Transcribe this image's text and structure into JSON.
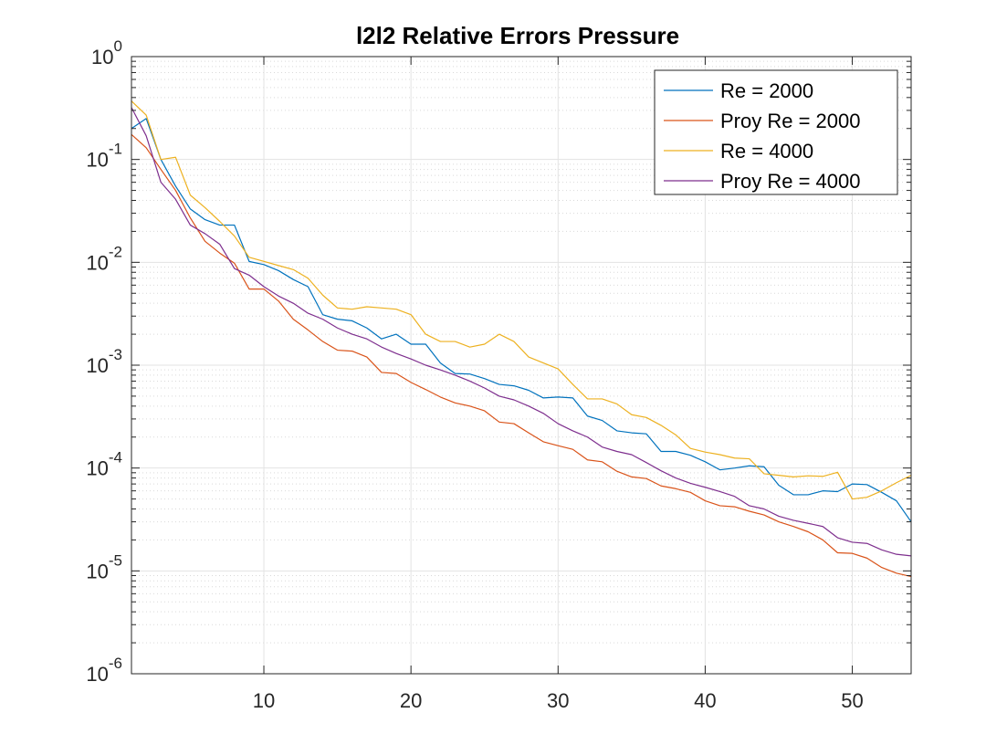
{
  "chart_data": {
    "type": "line",
    "title": "l2l2 Relative Errors Pressure",
    "xlabel": "",
    "ylabel": "",
    "yscale": "log",
    "xlim": [
      1,
      54
    ],
    "ylim": [
      1e-06,
      1
    ],
    "xticks": [
      10,
      20,
      30,
      40,
      50
    ],
    "yticks": [
      {
        "value": 1e-06,
        "base": "10",
        "exp": "-6"
      },
      {
        "value": 1e-05,
        "base": "10",
        "exp": "-5"
      },
      {
        "value": 0.0001,
        "base": "10",
        "exp": "-4"
      },
      {
        "value": 0.001,
        "base": "10",
        "exp": "-3"
      },
      {
        "value": 0.01,
        "base": "10",
        "exp": "-2"
      },
      {
        "value": 0.1,
        "base": "10",
        "exp": "-1"
      },
      {
        "value": 1,
        "base": "10",
        "exp": "0"
      }
    ],
    "grid": true,
    "minor_grid": true,
    "legend_position": "top-right",
    "series": [
      {
        "name": "Re = 2000",
        "color": "#0072BD",
        "x": [
          1,
          2,
          3,
          4,
          5,
          6,
          7,
          8,
          9,
          10,
          11,
          12,
          13,
          14,
          15,
          16,
          17,
          18,
          19,
          20,
          21,
          22,
          23,
          24,
          25,
          26,
          27,
          28,
          29,
          30,
          31,
          32,
          33,
          34,
          35,
          36,
          37,
          38,
          39,
          40,
          41,
          42,
          43,
          44,
          45,
          46,
          47,
          48,
          49,
          50,
          51,
          52,
          53,
          54
        ],
        "y": [
          0.2,
          0.25,
          0.1,
          0.055,
          0.033,
          0.026,
          0.023,
          0.023,
          0.0102,
          0.0095,
          0.0083,
          0.0068,
          0.0058,
          0.0031,
          0.0028,
          0.0027,
          0.0023,
          0.0018,
          0.002,
          0.0016,
          0.0016,
          0.00105,
          0.00083,
          0.00082,
          0.00074,
          0.00065,
          0.00063,
          0.00057,
          0.00048,
          0.00049,
          0.00048,
          0.00032,
          0.00029,
          0.00023,
          0.00022,
          0.000215,
          0.000145,
          0.000145,
          0.000133,
          0.000115,
          9.6e-05,
          0.0001,
          0.000105,
          0.000103,
          6.8e-05,
          5.5e-05,
          5.5e-05,
          6e-05,
          5.9e-05,
          7e-05,
          6.9e-05,
          5.8e-05,
          4.8e-05,
          3e-05
        ]
      },
      {
        "name": "Proy Re = 2000",
        "color": "#D95319",
        "x": [
          1,
          2,
          3,
          4,
          5,
          6,
          7,
          8,
          9,
          10,
          11,
          12,
          13,
          14,
          15,
          16,
          17,
          18,
          19,
          20,
          21,
          22,
          23,
          24,
          25,
          26,
          27,
          28,
          29,
          30,
          31,
          32,
          33,
          34,
          35,
          36,
          37,
          38,
          39,
          40,
          41,
          42,
          43,
          44,
          45,
          46,
          47,
          48,
          49,
          50,
          51,
          52,
          53,
          54
        ],
        "y": [
          0.175,
          0.13,
          0.08,
          0.05,
          0.027,
          0.016,
          0.0123,
          0.0098,
          0.0055,
          0.0055,
          0.0042,
          0.0028,
          0.0022,
          0.0017,
          0.0014,
          0.00137,
          0.0012,
          0.00085,
          0.00083,
          0.00068,
          0.00058,
          0.00049,
          0.00043,
          0.0004,
          0.00036,
          0.00028,
          0.00027,
          0.00022,
          0.00018,
          0.000165,
          0.000152,
          0.00012,
          0.000115,
          9.3e-05,
          8.2e-05,
          7.9e-05,
          6.7e-05,
          6.3e-05,
          5.8e-05,
          4.8e-05,
          4.3e-05,
          4.2e-05,
          3.8e-05,
          3.5e-05,
          3e-05,
          2.7e-05,
          2.4e-05,
          2e-05,
          1.5e-05,
          1.48e-05,
          1.33e-05,
          1.08e-05,
          9.5e-06,
          8.8e-06
        ]
      },
      {
        "name": "Re = 4000",
        "color": "#EDB120",
        "x": [
          1,
          2,
          3,
          4,
          5,
          6,
          7,
          8,
          9,
          10,
          11,
          12,
          13,
          14,
          15,
          16,
          17,
          18,
          19,
          20,
          21,
          22,
          23,
          24,
          25,
          26,
          27,
          28,
          29,
          30,
          31,
          32,
          33,
          34,
          35,
          36,
          37,
          38,
          39,
          40,
          41,
          42,
          43,
          44,
          45,
          46,
          47,
          48,
          49,
          50,
          51,
          52,
          53,
          54
        ],
        "y": [
          0.37,
          0.27,
          0.1,
          0.105,
          0.045,
          0.034,
          0.025,
          0.018,
          0.0112,
          0.0102,
          0.0093,
          0.0085,
          0.007,
          0.0048,
          0.0036,
          0.0035,
          0.0037,
          0.0036,
          0.0035,
          0.0031,
          0.002,
          0.0017,
          0.0017,
          0.0015,
          0.0016,
          0.002,
          0.0017,
          0.0012,
          0.00105,
          0.00092,
          0.00065,
          0.00047,
          0.00047,
          0.00042,
          0.00033,
          0.00031,
          0.00026,
          0.00021,
          0.000155,
          0.000143,
          0.000135,
          0.000125,
          0.000123,
          8.8e-05,
          8.5e-05,
          8.2e-05,
          8.4e-05,
          8.3e-05,
          9.1e-05,
          5e-05,
          5.2e-05,
          6e-05,
          7.2e-05,
          8.5e-05
        ]
      },
      {
        "name": "Proy Re = 4000",
        "color": "#7E2F8E",
        "x": [
          1,
          2,
          3,
          4,
          5,
          6,
          7,
          8,
          9,
          10,
          11,
          12,
          13,
          14,
          15,
          16,
          17,
          18,
          19,
          20,
          21,
          22,
          23,
          24,
          25,
          26,
          27,
          28,
          29,
          30,
          31,
          32,
          33,
          34,
          35,
          36,
          37,
          38,
          39,
          40,
          41,
          42,
          43,
          44,
          45,
          46,
          47,
          48,
          49,
          50,
          51,
          52,
          53,
          54
        ],
        "y": [
          0.32,
          0.17,
          0.06,
          0.041,
          0.023,
          0.019,
          0.015,
          0.0087,
          0.0075,
          0.0058,
          0.0047,
          0.004,
          0.0032,
          0.0028,
          0.0023,
          0.002,
          0.0018,
          0.0015,
          0.0013,
          0.00115,
          0.001,
          0.0009,
          0.0008,
          0.0007,
          0.0006,
          0.0005,
          0.00046,
          0.0004,
          0.00034,
          0.00027,
          0.00023,
          0.0002,
          0.00016,
          0.000145,
          0.000135,
          0.000113,
          9.4e-05,
          8e-05,
          7.1e-05,
          6.5e-05,
          5.9e-05,
          5.3e-05,
          4.3e-05,
          4e-05,
          3.4e-05,
          3.1e-05,
          2.9e-05,
          2.7e-05,
          2.1e-05,
          1.9e-05,
          1.85e-05,
          1.6e-05,
          1.45e-05,
          1.4e-05
        ]
      }
    ]
  }
}
